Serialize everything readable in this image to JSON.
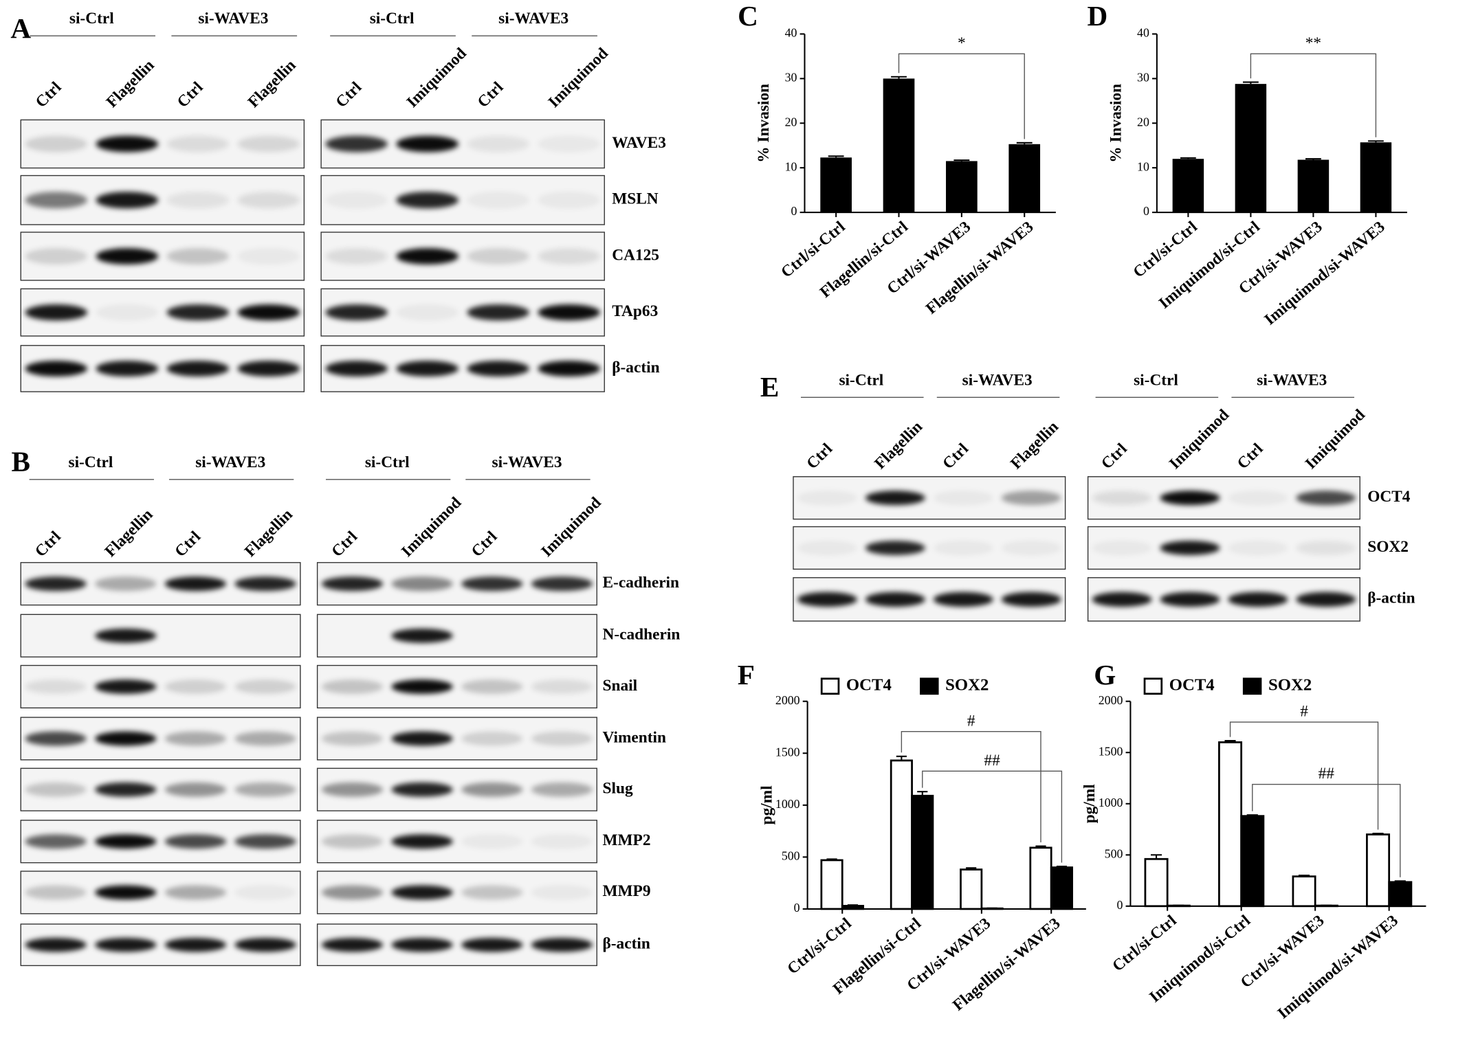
{
  "chart_data": [
    {
      "type": "bar",
      "label": "C",
      "ylabel": "% Invasion",
      "categories": [
        "Ctrl/si-Ctrl",
        "Flagellin/si-Ctrl",
        "Ctrl/si-WAVE3",
        "Flagellin/si-WAVE3"
      ],
      "values": [
        12.3,
        30,
        11.5,
        15.3
      ],
      "errors": [
        0.3,
        0.4,
        0.2,
        0.3
      ],
      "color": "#000000",
      "ylim": [
        0,
        40
      ],
      "yticks": [
        0,
        10,
        20,
        30,
        40
      ],
      "annotations": [
        "*"
      ]
    },
    {
      "type": "bar",
      "label": "D",
      "ylabel": "% Invasion",
      "categories": [
        "Ctrl/si-Ctrl",
        "Imiquimod/si-Ctrl",
        "Ctrl/si-WAVE3",
        "Imiquimod/si-WAVE3"
      ],
      "values": [
        12,
        28.8,
        11.8,
        15.7
      ],
      "errors": [
        0.2,
        0.4,
        0.2,
        0.3
      ],
      "color": "#000000",
      "ylim": [
        0,
        40
      ],
      "yticks": [
        0,
        10,
        20,
        30,
        40
      ],
      "annotations": [
        "**"
      ]
    },
    {
      "type": "grouped-bar",
      "label": "F",
      "ylabel": "pg/ml",
      "categories": [
        "Ctrl/si-Ctrl",
        "Flagellin/si-Ctrl",
        "Ctrl/si-WAVE3",
        "Flagellin/si-WAVE3"
      ],
      "series": [
        {
          "name": "OCT4",
          "color": "#ffffff",
          "values": [
            470,
            1430,
            380,
            590
          ],
          "errors": [
            10,
            40,
            15,
            15
          ]
        },
        {
          "name": "SOX2",
          "color": "#000000",
          "values": [
            30,
            1090,
            5,
            400
          ],
          "errors": [
            8,
            40,
            3,
            10
          ]
        }
      ],
      "ylim": [
        0,
        2000
      ],
      "yticks": [
        0,
        500,
        1000,
        1500,
        2000
      ],
      "annotations": [
        "#",
        "##"
      ]
    },
    {
      "type": "grouped-bar",
      "label": "G",
      "ylabel": "pg/ml",
      "categories": [
        "Ctrl/si-Ctrl",
        "Imiquimod/si-Ctrl",
        "Ctrl/si-WAVE3",
        "Imiquimod/si-WAVE3"
      ],
      "series": [
        {
          "name": "OCT4",
          "color": "#ffffff",
          "values": [
            460,
            1600,
            290,
            700
          ],
          "errors": [
            40,
            15,
            10,
            10
          ]
        },
        {
          "name": "SOX2",
          "color": "#000000",
          "values": [
            5,
            880,
            5,
            235
          ],
          "errors": [
            3,
            10,
            3,
            10
          ]
        }
      ],
      "ylim": [
        0,
        2000
      ],
      "yticks": [
        0,
        500,
        1000,
        1500,
        2000
      ],
      "annotations": [
        "#",
        "##"
      ]
    }
  ],
  "blots": {
    "A": {
      "label": "A",
      "proteins": [
        "WAVE3",
        "MSLN",
        "CA125",
        "TAp63",
        "β-actin"
      ],
      "blocks": [
        {
          "groups": [
            "si-Ctrl",
            "si-WAVE3"
          ],
          "lanes": [
            "Ctrl",
            "Flagellin",
            "Ctrl",
            "Flagellin"
          ],
          "bands": [
            [
              0.15,
              0.95,
              0.1,
              0.12
            ],
            [
              0.5,
              0.9,
              0.08,
              0.1
            ],
            [
              0.15,
              0.95,
              0.2,
              0.05
            ],
            [
              0.9,
              0.05,
              0.85,
              0.95
            ],
            [
              0.95,
              0.9,
              0.9,
              0.9
            ]
          ]
        },
        {
          "groups": [
            "si-Ctrl",
            "si-WAVE3"
          ],
          "lanes": [
            "Ctrl",
            "Imiquimod",
            "Ctrl",
            "Imiquimod"
          ],
          "bands": [
            [
              0.8,
              0.95,
              0.08,
              0.05
            ],
            [
              0.05,
              0.85,
              0.05,
              0.05
            ],
            [
              0.1,
              0.95,
              0.15,
              0.1
            ],
            [
              0.85,
              0.05,
              0.85,
              0.95
            ],
            [
              0.9,
              0.9,
              0.9,
              0.95
            ]
          ]
        }
      ]
    },
    "B": {
      "label": "B",
      "proteins": [
        "E-cadherin",
        "N-cadherin",
        "Snail",
        "Vimentin",
        "Slug",
        "MMP2",
        "MMP9",
        "β-actin"
      ],
      "blocks": [
        {
          "groups": [
            "si-Ctrl",
            "si-WAVE3"
          ],
          "lanes": [
            "Ctrl",
            "Flagellin",
            "Ctrl",
            "Flagellin"
          ],
          "bands": [
            [
              0.85,
              0.3,
              0.9,
              0.85
            ],
            [
              0,
              0.9,
              0,
              0
            ],
            [
              0.1,
              0.9,
              0.15,
              0.15
            ],
            [
              0.7,
              0.95,
              0.3,
              0.3
            ],
            [
              0.2,
              0.85,
              0.4,
              0.3
            ],
            [
              0.6,
              0.95,
              0.7,
              0.7
            ],
            [
              0.2,
              0.95,
              0.3,
              0.05
            ],
            [
              0.9,
              0.9,
              0.9,
              0.9
            ]
          ]
        },
        {
          "groups": [
            "si-Ctrl",
            "si-WAVE3"
          ],
          "lanes": [
            "Ctrl",
            "Imiquimod",
            "Ctrl",
            "Imiquimod"
          ],
          "bands": [
            [
              0.85,
              0.45,
              0.8,
              0.8
            ],
            [
              0,
              0.9,
              0,
              0
            ],
            [
              0.2,
              0.95,
              0.2,
              0.1
            ],
            [
              0.2,
              0.9,
              0.15,
              0.15
            ],
            [
              0.4,
              0.85,
              0.4,
              0.3
            ],
            [
              0.2,
              0.9,
              0.05,
              0.05
            ],
            [
              0.4,
              0.9,
              0.2,
              0.05
            ],
            [
              0.9,
              0.9,
              0.9,
              0.9
            ]
          ]
        }
      ]
    },
    "E": {
      "label": "E",
      "proteins": [
        "OCT4",
        "SOX2",
        "β-actin"
      ],
      "blocks": [
        {
          "groups": [
            "si-Ctrl",
            "si-WAVE3"
          ],
          "lanes": [
            "Ctrl",
            "Flagellin",
            "Ctrl",
            "Flagellin"
          ],
          "bands": [
            [
              0.05,
              0.9,
              0.05,
              0.35
            ],
            [
              0.05,
              0.85,
              0.05,
              0.05
            ],
            [
              0.9,
              0.9,
              0.9,
              0.9
            ]
          ]
        },
        {
          "groups": [
            "si-Ctrl",
            "si-WAVE3"
          ],
          "lanes": [
            "Ctrl",
            "Imiquimod",
            "Ctrl",
            "Imiquimod"
          ],
          "bands": [
            [
              0.1,
              0.95,
              0.05,
              0.7
            ],
            [
              0.05,
              0.9,
              0.05,
              0.08
            ],
            [
              0.9,
              0.9,
              0.9,
              0.9
            ]
          ]
        }
      ]
    }
  }
}
